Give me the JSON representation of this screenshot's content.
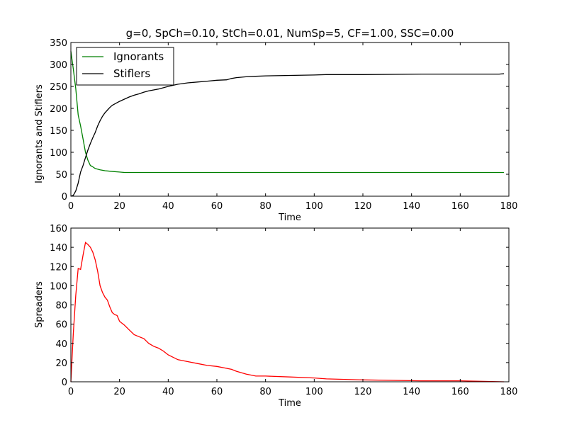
{
  "chart_data": [
    {
      "type": "line",
      "title": "g=0, SpCh=0.10, StCh=0.01, NumSp=5, CF=1.00, SSC=0.00",
      "xlabel": "Time",
      "ylabel": "Ignorants and Stiflers",
      "xlim": [
        0,
        180
      ],
      "ylim": [
        0,
        350
      ],
      "xticks": [
        "0",
        "20",
        "40",
        "60",
        "80",
        "100",
        "120",
        "140",
        "160",
        "180"
      ],
      "yticks": [
        "0",
        "50",
        "100",
        "150",
        "200",
        "250",
        "300",
        "350"
      ],
      "legend": {
        "position": "top-left",
        "entries": [
          "Ignorants",
          "Stiflers"
        ]
      },
      "series": [
        {
          "name": "Ignorants",
          "color": "#008000",
          "x": [
            0,
            1,
            2,
            3,
            4,
            5,
            6,
            7,
            8,
            9,
            10,
            12,
            14,
            16,
            18,
            20,
            22,
            30,
            40,
            60,
            80,
            100,
            120,
            140,
            160,
            178
          ],
          "y": [
            330,
            290,
            245,
            185,
            160,
            130,
            100,
            82,
            70,
            67,
            63,
            60,
            58,
            57,
            56,
            55,
            54,
            54,
            54,
            54,
            54,
            54,
            54,
            54,
            54,
            54
          ]
        },
        {
          "name": "Stiflers",
          "color": "#000000",
          "x": [
            0,
            1,
            2,
            3,
            4,
            5,
            6,
            7,
            8,
            9,
            10,
            11,
            12,
            13,
            14,
            15,
            16,
            17,
            18,
            19,
            20,
            22,
            24,
            26,
            28,
            30,
            32,
            34,
            36,
            38,
            40,
            44,
            48,
            52,
            56,
            60,
            64,
            66,
            68,
            72,
            76,
            80,
            90,
            100,
            105,
            120,
            144,
            160,
            176,
            178
          ],
          "y": [
            0,
            2,
            12,
            30,
            55,
            70,
            88,
            105,
            120,
            133,
            145,
            160,
            172,
            182,
            190,
            196,
            202,
            207,
            210,
            213,
            216,
            221,
            226,
            230,
            233,
            237,
            240,
            242,
            244,
            247,
            250,
            255,
            258,
            260,
            262,
            264,
            265,
            268,
            270,
            272,
            273,
            274,
            275,
            276,
            277,
            277,
            278,
            278,
            278,
            279
          ]
        }
      ]
    },
    {
      "type": "line",
      "title": "",
      "xlabel": "Time",
      "ylabel": "Spreaders",
      "xlim": [
        0,
        180
      ],
      "ylim": [
        0,
        160
      ],
      "xticks": [
        "0",
        "20",
        "40",
        "60",
        "80",
        "100",
        "120",
        "140",
        "160",
        "180"
      ],
      "yticks": [
        "0",
        "20",
        "40",
        "60",
        "80",
        "100",
        "120",
        "140",
        "160"
      ],
      "series": [
        {
          "name": "Spreaders",
          "color": "#ff0000",
          "x": [
            0,
            1,
            2,
            3,
            4,
            5,
            6,
            7,
            8,
            9,
            10,
            11,
            12,
            13,
            14,
            15,
            16,
            17,
            18,
            19,
            20,
            22,
            24,
            26,
            28,
            30,
            32,
            34,
            36,
            38,
            40,
            44,
            48,
            52,
            56,
            60,
            64,
            66,
            68,
            72,
            76,
            80,
            90,
            100,
            105,
            120,
            144,
            160,
            178
          ],
          "y": [
            0,
            50,
            90,
            118,
            117,
            132,
            145,
            143,
            140,
            135,
            127,
            115,
            100,
            93,
            88,
            85,
            78,
            72,
            70,
            69,
            63,
            59,
            54,
            49,
            47,
            45,
            40,
            37,
            35,
            32,
            28,
            23,
            21,
            19,
            17,
            16,
            14,
            13,
            11,
            8,
            6,
            6,
            5,
            4,
            3,
            2,
            1,
            1,
            0
          ]
        }
      ]
    }
  ]
}
